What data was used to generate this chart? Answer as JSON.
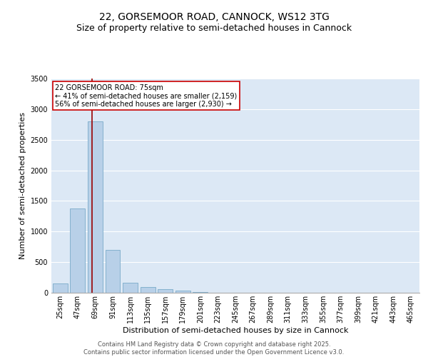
{
  "title": "22, GORSEMOOR ROAD, CANNOCK, WS12 3TG",
  "subtitle": "Size of property relative to semi-detached houses in Cannock",
  "xlabel": "Distribution of semi-detached houses by size in Cannock",
  "ylabel": "Number of semi-detached properties",
  "bins": [
    25,
    47,
    69,
    91,
    113,
    135,
    157,
    179,
    201,
    223,
    245,
    267,
    289,
    311,
    333,
    355,
    377,
    399,
    421,
    443,
    465
  ],
  "counts": [
    150,
    1380,
    2800,
    700,
    160,
    90,
    60,
    30,
    10,
    0,
    0,
    0,
    0,
    0,
    0,
    0,
    0,
    0,
    0,
    0
  ],
  "bar_color": "#b8d0e8",
  "bar_edge_color": "#7aaac8",
  "property_size": 75,
  "property_line_color": "#990000",
  "annotation_text": "22 GORSEMOOR ROAD: 75sqm\n← 41% of semi-detached houses are smaller (2,159)\n56% of semi-detached houses are larger (2,930) →",
  "annotation_box_facecolor": "#ffffff",
  "annotation_box_edgecolor": "#cc0000",
  "ylim": [
    0,
    3500
  ],
  "yticks": [
    0,
    500,
    1000,
    1500,
    2000,
    2500,
    3000,
    3500
  ],
  "axes_bg_color": "#dce8f5",
  "footer_line1": "Contains HM Land Registry data © Crown copyright and database right 2025.",
  "footer_line2": "Contains public sector information licensed under the Open Government Licence v3.0.",
  "title_fontsize": 10,
  "subtitle_fontsize": 9,
  "xlabel_fontsize": 8,
  "ylabel_fontsize": 8,
  "tick_fontsize": 7,
  "annotation_fontsize": 7,
  "footer_fontsize": 6
}
